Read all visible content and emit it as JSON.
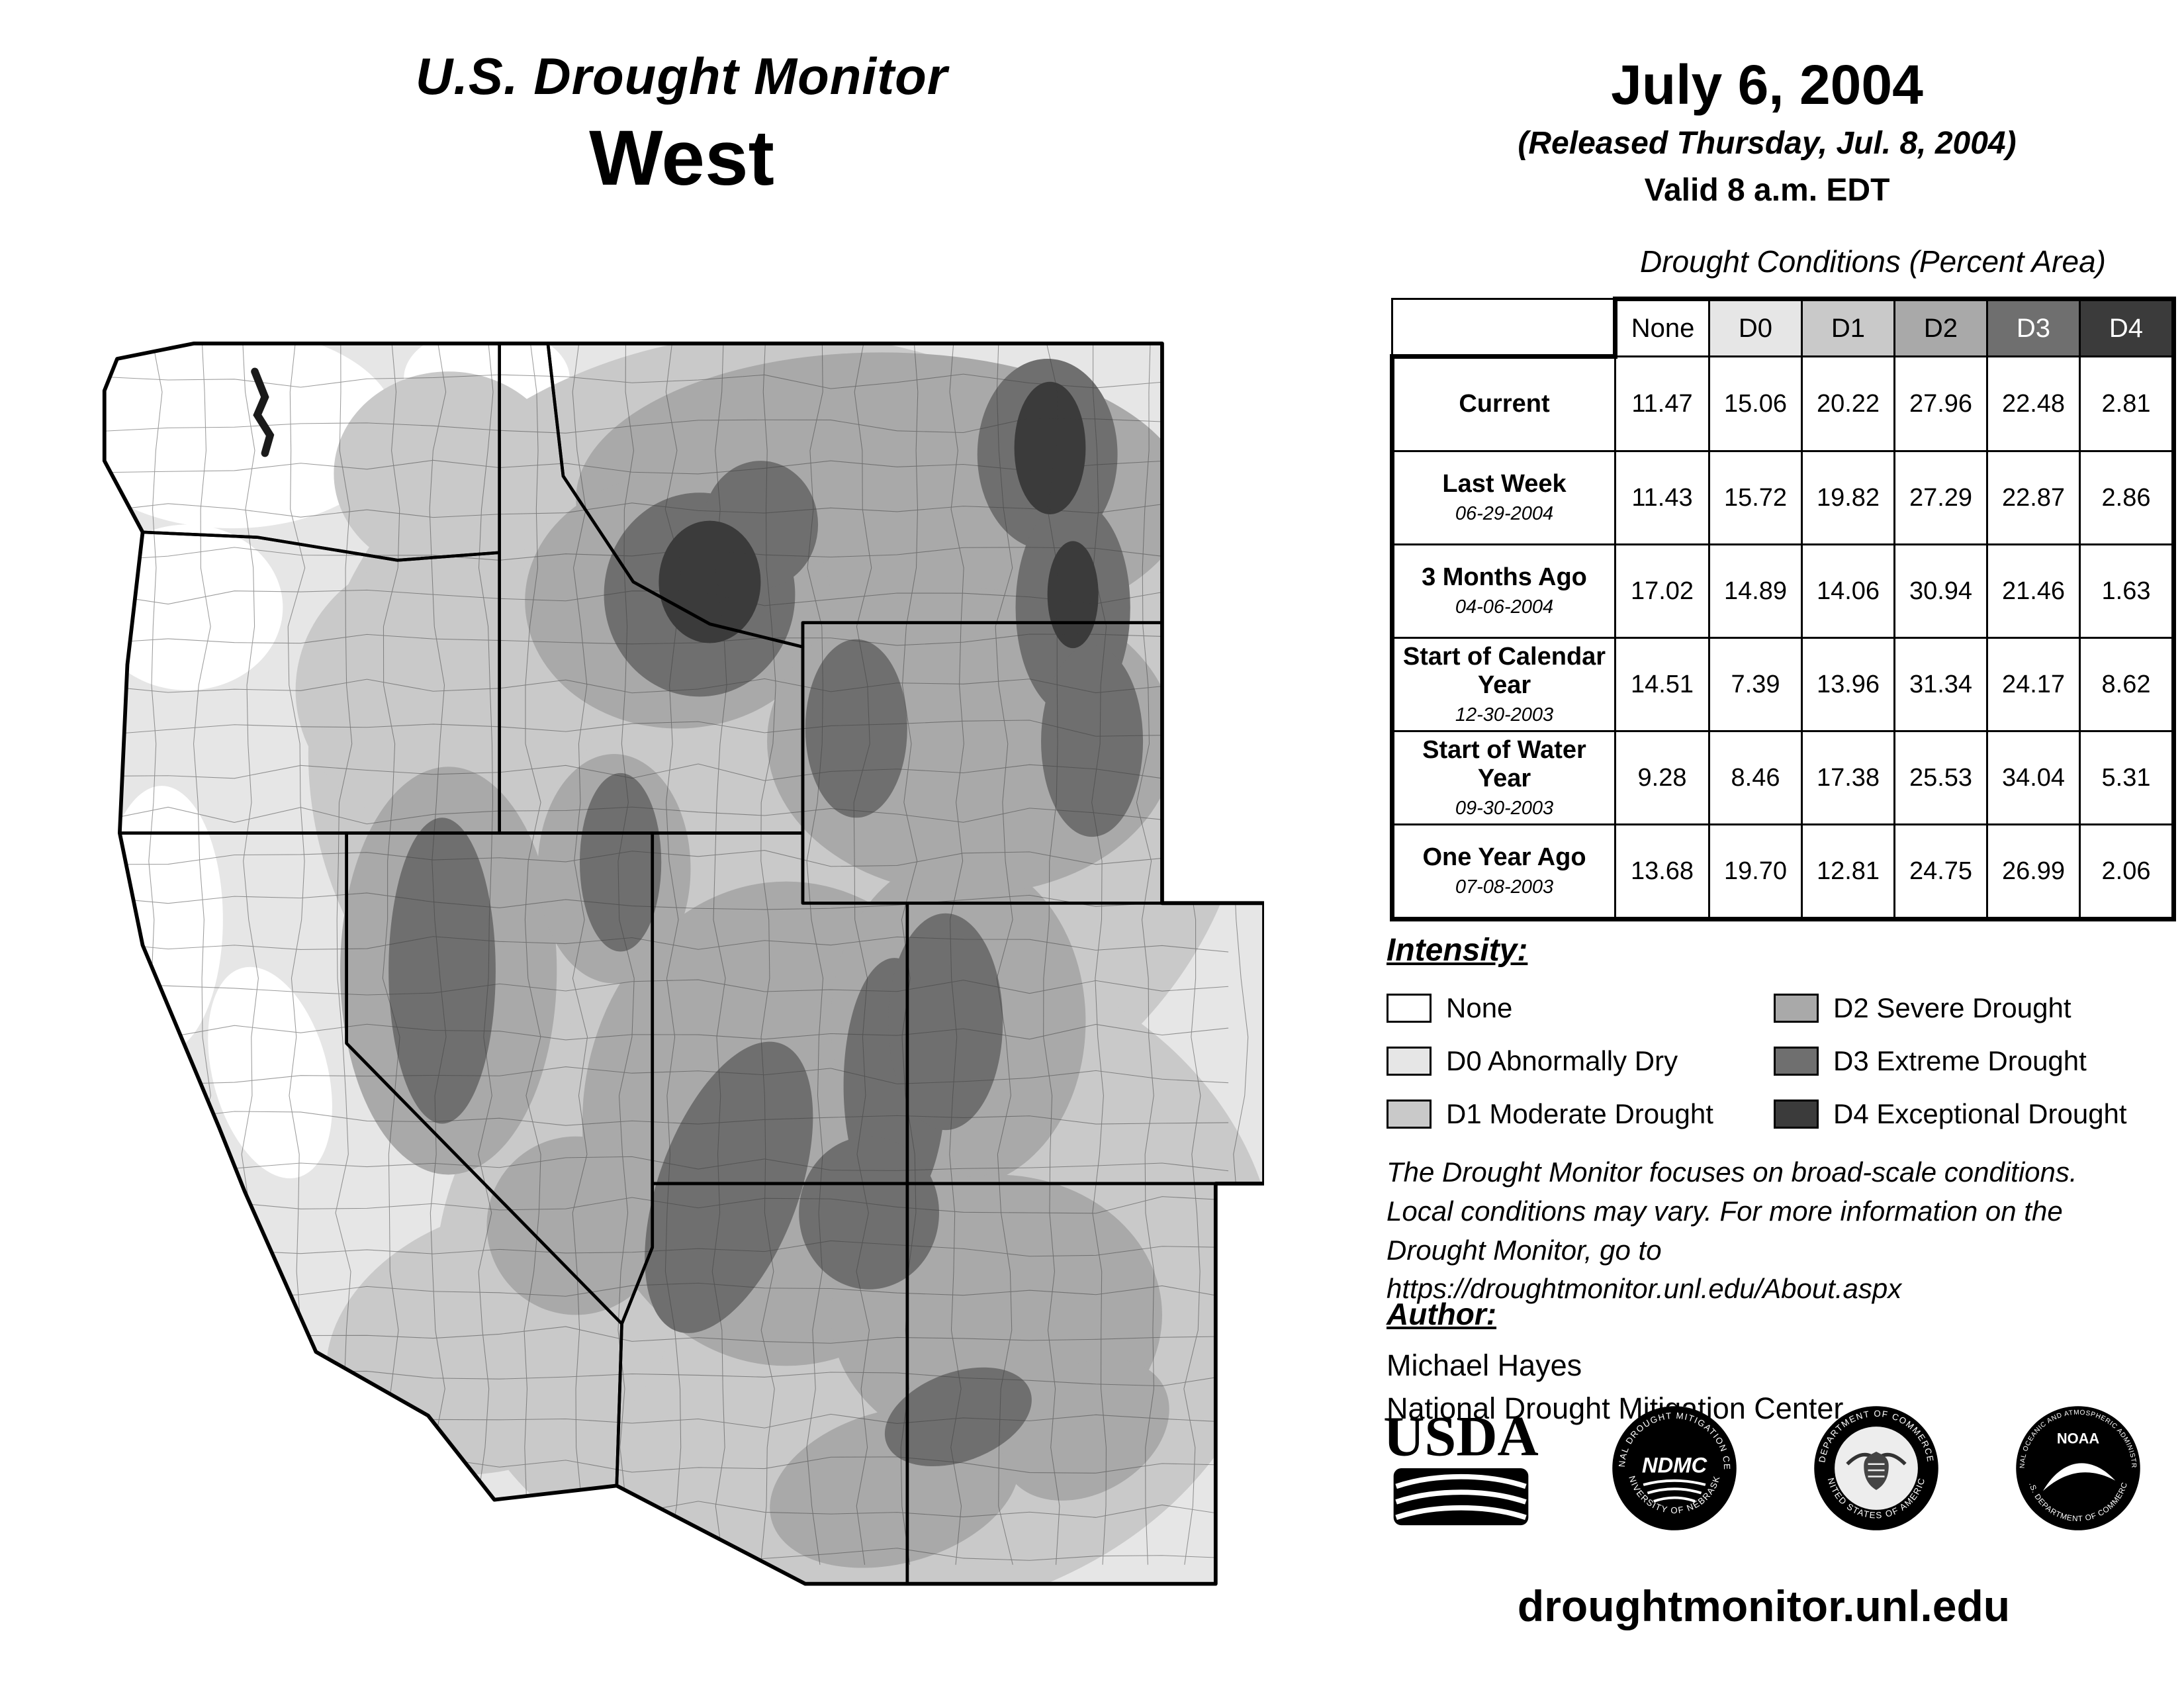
{
  "header": {
    "title": "U.S. Drought Monitor",
    "region": "West",
    "date": "July 6, 2004",
    "released": "(Released Thursday, Jul. 8, 2004)",
    "valid": "Valid 8 a.m. EDT"
  },
  "table": {
    "title": "Drought Conditions (Percent Area)",
    "columns": [
      "None",
      "D0",
      "D1",
      "D2",
      "D3",
      "D4"
    ],
    "column_colors": [
      "#ffffff",
      "#e6e6e6",
      "#c9c9c9",
      "#a9a9a9",
      "#6f6f6f",
      "#3b3b3b"
    ],
    "column_text_colors": [
      "#000000",
      "#000000",
      "#000000",
      "#000000",
      "#ffffff",
      "#ffffff"
    ],
    "rows": [
      {
        "label": "Current",
        "date": "",
        "values": [
          "11.47",
          "15.06",
          "20.22",
          "27.96",
          "22.48",
          "2.81"
        ]
      },
      {
        "label": "Last Week",
        "date": "06-29-2004",
        "values": [
          "11.43",
          "15.72",
          "19.82",
          "27.29",
          "22.87",
          "2.86"
        ]
      },
      {
        "label": "3 Months Ago",
        "date": "04-06-2004",
        "values": [
          "17.02",
          "14.89",
          "14.06",
          "30.94",
          "21.46",
          "1.63"
        ]
      },
      {
        "label": "Start of Calendar Year",
        "date": "12-30-2003",
        "values": [
          "14.51",
          "7.39",
          "13.96",
          "31.34",
          "24.17",
          "8.62"
        ]
      },
      {
        "label": "Start of Water Year",
        "date": "09-30-2003",
        "values": [
          "9.28",
          "8.46",
          "17.38",
          "25.53",
          "34.04",
          "5.31"
        ]
      },
      {
        "label": "One Year Ago",
        "date": "07-08-2003",
        "values": [
          "13.68",
          "19.70",
          "12.81",
          "24.75",
          "26.99",
          "2.06"
        ]
      }
    ]
  },
  "legend": {
    "title": "Intensity:",
    "items": [
      {
        "label": "None",
        "color": "#ffffff"
      },
      {
        "label": "D0 Abnormally Dry",
        "color": "#e6e6e6"
      },
      {
        "label": "D1 Moderate Drought",
        "color": "#c9c9c9"
      },
      {
        "label": "D2 Severe Drought",
        "color": "#a9a9a9"
      },
      {
        "label": "D3 Extreme Drought",
        "color": "#6f6f6f"
      },
      {
        "label": "D4 Exceptional Drought",
        "color": "#3b3b3b"
      }
    ]
  },
  "disclaimer": {
    "line1": "The Drought Monitor focuses on broad-scale conditions.",
    "line2": "Local conditions may vary. For more information on the",
    "line3": "Drought Monitor, go to https://droughtmonitor.unl.edu/About.aspx"
  },
  "author": {
    "title": "Author:",
    "name": "Michael Hayes",
    "org": "National Drought Mitigation Center"
  },
  "logos": [
    {
      "label": "USDA"
    },
    {
      "label": "NDMC",
      "ring_top": "NATIONAL DROUGHT MITIGATION CENTER",
      "ring_bottom": "UNIVERSITY OF NEBRASKA"
    },
    {
      "label": "",
      "ring_top": "DEPARTMENT OF COMMERCE",
      "ring_bottom": "UNITED STATES OF AMERICA"
    },
    {
      "label": "NOAA",
      "ring_top": "NATIONAL OCEANIC AND ATMOSPHERIC ADMINISTRATION",
      "ring_bottom": "U.S. DEPARTMENT OF COMMERCE"
    }
  ],
  "footer": {
    "website": "droughtmonitor.unl.edu"
  }
}
